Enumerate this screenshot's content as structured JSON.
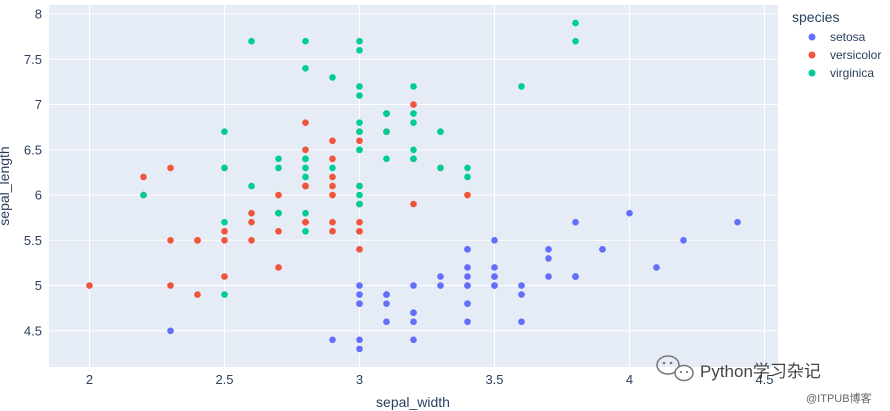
{
  "chart_data": {
    "type": "scatter",
    "xlabel": "sepal_width",
    "ylabel": "sepal_length",
    "xlim": [
      1.85,
      4.55
    ],
    "ylim": [
      4.1,
      8.1
    ],
    "x_ticks": [
      2,
      2.5,
      3,
      3.5,
      4,
      4.5
    ],
    "x_tick_labels": [
      "2",
      "2.5",
      "3",
      "3.5",
      "4",
      "4.5"
    ],
    "y_ticks": [
      4.5,
      5,
      5.5,
      6,
      6.5,
      7,
      7.5,
      8
    ],
    "y_tick_labels": [
      "4.5",
      "5",
      "5.5",
      "6",
      "6.5",
      "7",
      "7.5",
      "8"
    ],
    "grid": true,
    "legend": {
      "title": "species",
      "placement": "right"
    },
    "series": [
      {
        "name": "setosa",
        "color": "#636efa",
        "points": [
          [
            3.5,
            5.1
          ],
          [
            3.0,
            4.9
          ],
          [
            3.2,
            4.7
          ],
          [
            3.1,
            4.6
          ],
          [
            3.6,
            5.0
          ],
          [
            3.9,
            5.4
          ],
          [
            3.4,
            4.6
          ],
          [
            3.4,
            5.0
          ],
          [
            2.9,
            4.4
          ],
          [
            3.1,
            4.9
          ],
          [
            3.7,
            5.4
          ],
          [
            3.4,
            4.8
          ],
          [
            3.0,
            4.8
          ],
          [
            3.0,
            4.3
          ],
          [
            4.0,
            5.8
          ],
          [
            4.4,
            5.7
          ],
          [
            3.9,
            5.4
          ],
          [
            3.5,
            5.1
          ],
          [
            3.8,
            5.7
          ],
          [
            3.8,
            5.1
          ],
          [
            3.4,
            5.4
          ],
          [
            3.7,
            5.1
          ],
          [
            3.6,
            4.6
          ],
          [
            3.3,
            5.1
          ],
          [
            3.4,
            4.8
          ],
          [
            3.0,
            5.0
          ],
          [
            3.4,
            5.0
          ],
          [
            3.5,
            5.2
          ],
          [
            3.4,
            5.2
          ],
          [
            3.2,
            4.7
          ],
          [
            3.1,
            4.8
          ],
          [
            3.4,
            5.4
          ],
          [
            4.1,
            5.2
          ],
          [
            4.2,
            5.5
          ],
          [
            3.1,
            4.9
          ],
          [
            3.2,
            5.0
          ],
          [
            3.5,
            5.5
          ],
          [
            3.6,
            4.9
          ],
          [
            3.0,
            4.4
          ],
          [
            3.4,
            5.1
          ],
          [
            3.5,
            5.0
          ],
          [
            2.3,
            4.5
          ],
          [
            3.2,
            4.4
          ],
          [
            3.5,
            5.0
          ],
          [
            3.8,
            5.1
          ],
          [
            3.0,
            4.8
          ],
          [
            3.8,
            5.1
          ],
          [
            3.2,
            4.6
          ],
          [
            3.7,
            5.3
          ],
          [
            3.3,
            5.0
          ]
        ]
      },
      {
        "name": "versicolor",
        "color": "#ef553b",
        "points": [
          [
            3.2,
            7.0
          ],
          [
            3.2,
            6.4
          ],
          [
            3.1,
            6.9
          ],
          [
            2.3,
            5.5
          ],
          [
            2.8,
            6.5
          ],
          [
            2.8,
            5.7
          ],
          [
            3.3,
            6.3
          ],
          [
            2.4,
            4.9
          ],
          [
            2.9,
            6.6
          ],
          [
            2.7,
            5.2
          ],
          [
            2.0,
            5.0
          ],
          [
            3.0,
            5.9
          ],
          [
            2.2,
            6.0
          ],
          [
            2.9,
            6.1
          ],
          [
            2.9,
            5.6
          ],
          [
            3.1,
            6.7
          ],
          [
            3.0,
            5.6
          ],
          [
            2.7,
            5.8
          ],
          [
            2.2,
            6.2
          ],
          [
            2.5,
            5.6
          ],
          [
            3.2,
            5.9
          ],
          [
            2.8,
            6.1
          ],
          [
            2.5,
            6.3
          ],
          [
            2.8,
            6.1
          ],
          [
            2.9,
            6.4
          ],
          [
            3.0,
            6.6
          ],
          [
            2.8,
            6.8
          ],
          [
            3.0,
            6.7
          ],
          [
            2.9,
            6.0
          ],
          [
            2.6,
            5.7
          ],
          [
            2.4,
            5.5
          ],
          [
            2.4,
            5.5
          ],
          [
            2.7,
            5.8
          ],
          [
            2.7,
            6.0
          ],
          [
            3.0,
            5.4
          ],
          [
            3.4,
            6.0
          ],
          [
            3.1,
            6.7
          ],
          [
            2.3,
            6.3
          ],
          [
            3.0,
            5.6
          ],
          [
            2.5,
            5.5
          ],
          [
            2.6,
            5.5
          ],
          [
            3.0,
            6.1
          ],
          [
            2.6,
            5.8
          ],
          [
            2.3,
            5.0
          ],
          [
            2.7,
            5.6
          ],
          [
            3.0,
            5.7
          ],
          [
            2.9,
            5.7
          ],
          [
            2.9,
            6.2
          ],
          [
            2.5,
            5.1
          ],
          [
            2.8,
            5.7
          ]
        ]
      },
      {
        "name": "virginica",
        "color": "#00cc96",
        "points": [
          [
            3.3,
            6.3
          ],
          [
            2.7,
            5.8
          ],
          [
            3.0,
            7.1
          ],
          [
            2.9,
            6.3
          ],
          [
            3.0,
            6.5
          ],
          [
            3.0,
            7.6
          ],
          [
            2.5,
            4.9
          ],
          [
            2.9,
            7.3
          ],
          [
            2.5,
            6.7
          ],
          [
            3.6,
            7.2
          ],
          [
            3.2,
            6.5
          ],
          [
            2.7,
            6.4
          ],
          [
            3.0,
            6.8
          ],
          [
            2.5,
            5.7
          ],
          [
            2.8,
            5.8
          ],
          [
            3.2,
            6.4
          ],
          [
            3.0,
            6.5
          ],
          [
            3.8,
            7.7
          ],
          [
            2.6,
            7.7
          ],
          [
            2.2,
            6.0
          ],
          [
            3.2,
            6.9
          ],
          [
            2.8,
            5.6
          ],
          [
            2.8,
            7.7
          ],
          [
            2.7,
            6.3
          ],
          [
            3.3,
            6.7
          ],
          [
            3.2,
            7.2
          ],
          [
            2.8,
            6.2
          ],
          [
            3.0,
            6.1
          ],
          [
            2.8,
            6.4
          ],
          [
            3.0,
            7.2
          ],
          [
            2.8,
            7.4
          ],
          [
            3.8,
            7.9
          ],
          [
            2.8,
            6.4
          ],
          [
            2.8,
            6.3
          ],
          [
            2.6,
            6.1
          ],
          [
            3.0,
            7.7
          ],
          [
            3.4,
            6.3
          ],
          [
            3.1,
            6.4
          ],
          [
            3.0,
            6.0
          ],
          [
            3.1,
            6.9
          ],
          [
            3.1,
            6.7
          ],
          [
            3.1,
            6.9
          ],
          [
            2.7,
            5.8
          ],
          [
            3.2,
            6.8
          ],
          [
            3.3,
            6.7
          ],
          [
            3.0,
            6.7
          ],
          [
            2.5,
            6.3
          ],
          [
            3.0,
            6.5
          ],
          [
            3.4,
            6.2
          ],
          [
            3.0,
            5.9
          ]
        ]
      }
    ]
  },
  "watermark": {
    "text": "Python学习杂记",
    "subtext": "@ITPUB博客"
  }
}
